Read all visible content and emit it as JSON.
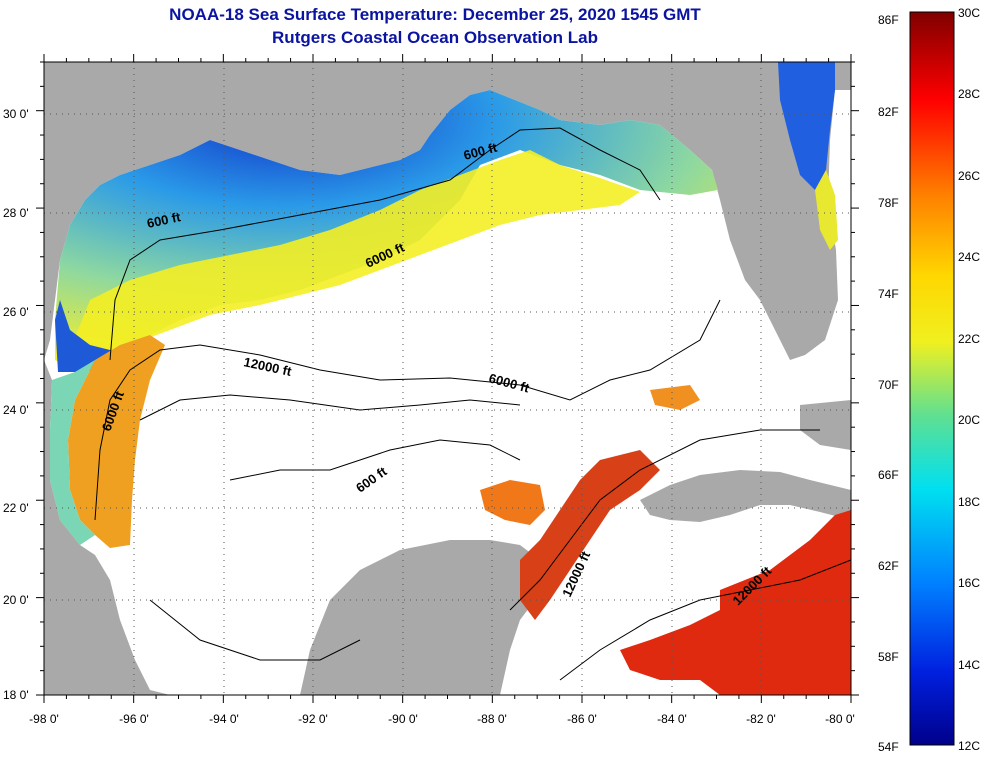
{
  "title": "NOAA-18 Sea Surface Temperature:  December 25, 2020 1545 GMT",
  "subtitle": "Rutgers Coastal Ocean Observation Lab",
  "map": {
    "lon_range": [
      -98,
      -80
    ],
    "lat_range": [
      18,
      31
    ],
    "x_ticks": [
      "-98 0'",
      "-96 0'",
      "-94 0'",
      "-92 0'",
      "-90 0'",
      "-88 0'",
      "-86 0'",
      "-84 0'",
      "-82 0'",
      "-80 0'"
    ],
    "y_ticks": [
      "30 0'",
      "28 0'",
      "26 0'",
      "24 0'",
      "22 0'",
      "20 0'",
      "18 0'"
    ],
    "contour_labels": [
      "600 ft",
      "600 ft",
      "6000 ft",
      "12000 ft",
      "6000 ft",
      "6000 ft",
      "600 ft",
      "12000 ft",
      "12000 ft"
    ],
    "colors": {
      "land": "#a9a9a9",
      "water_nodata": "#ffffff",
      "coastal_cold": "#1e3cd2",
      "shelf": "#33b8f0",
      "midshelf": "#f4f01e",
      "warm": "#f08a1e",
      "hot": "#e03010"
    }
  },
  "colorbar": {
    "f_labels": [
      "86F",
      "82F",
      "78F",
      "74F",
      "70F",
      "66F",
      "62F",
      "58F",
      "54F"
    ],
    "c_labels": [
      "30C",
      "28C",
      "26C",
      "24C",
      "22C",
      "20C",
      "18C",
      "16C",
      "14C",
      "12C"
    ],
    "range_c": [
      12,
      30
    ]
  }
}
